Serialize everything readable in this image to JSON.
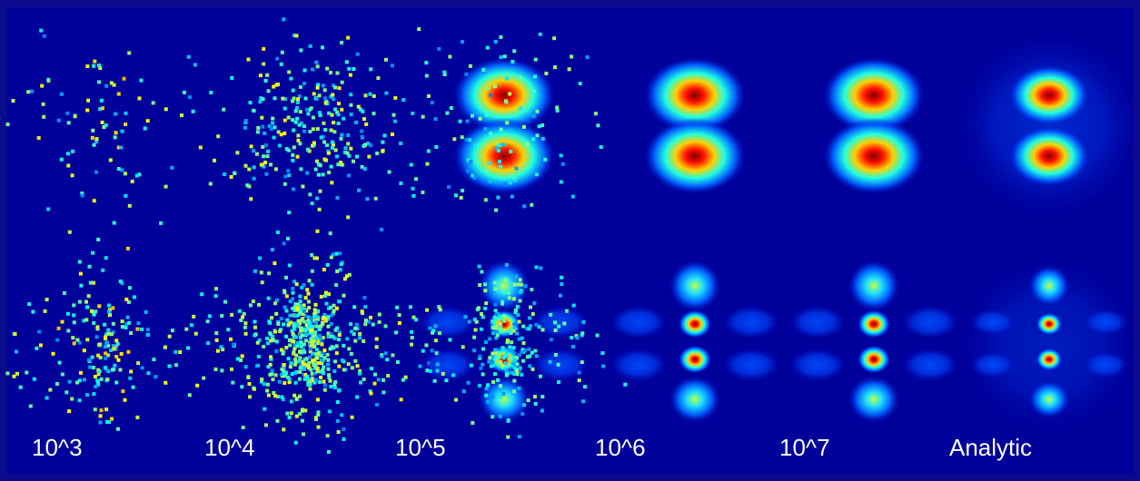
{
  "panels": [
    {
      "label": "10^3"
    },
    {
      "label": "10^4"
    },
    {
      "label": "10^5"
    },
    {
      "label": "10^6"
    },
    {
      "label": "10^7"
    },
    {
      "label": "Analytic"
    }
  ]
}
